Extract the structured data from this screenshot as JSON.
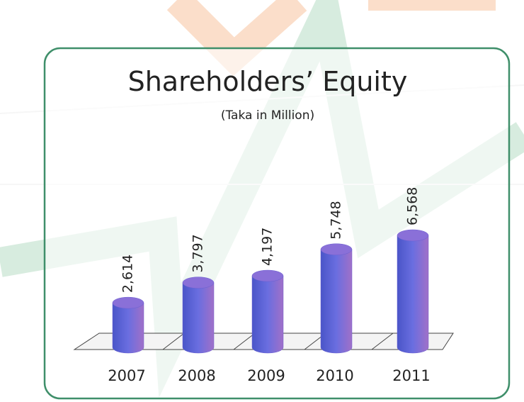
{
  "chart_data": {
    "type": "bar",
    "title": "Shareholders’ Equity",
    "subtitle": "(Taka in Million)",
    "categories": [
      "2007",
      "2008",
      "2009",
      "2010",
      "2011"
    ],
    "values": [
      2614,
      3797,
      4197,
      5748,
      6568
    ],
    "value_labels": [
      "2,614",
      "3,797",
      "4,197",
      "5,748",
      "6,568"
    ],
    "color": "#6a5fd0"
  }
}
